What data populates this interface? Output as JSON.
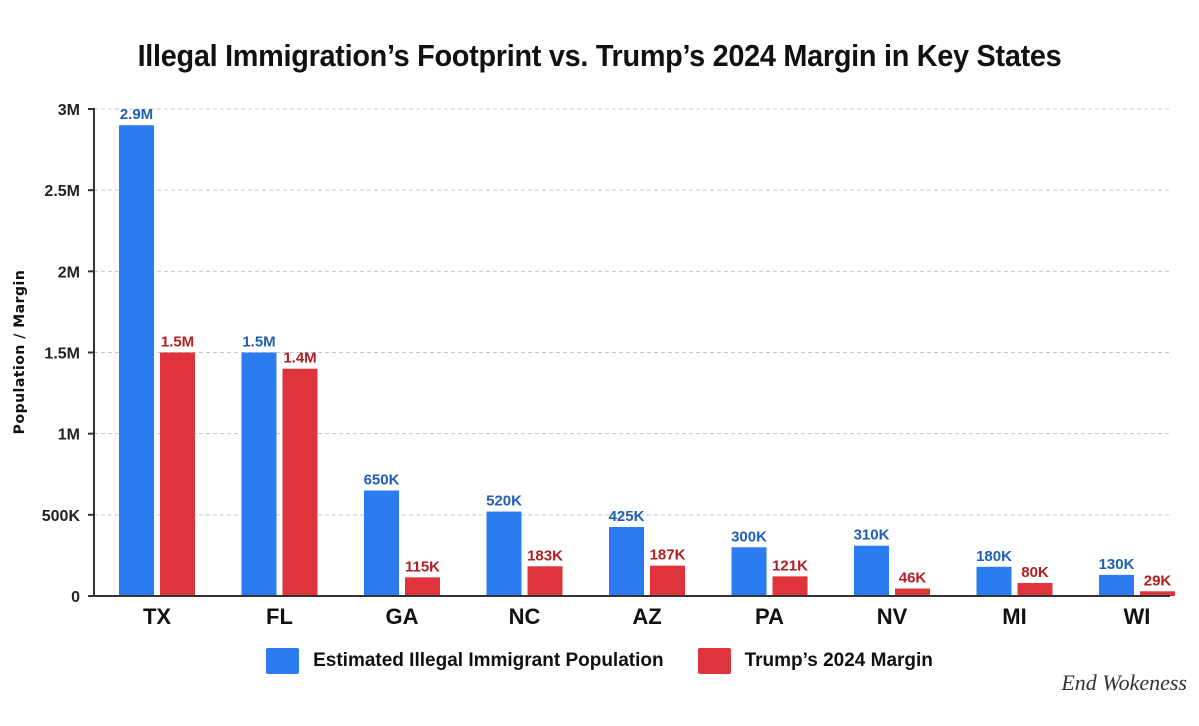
{
  "chart_data": {
    "type": "bar",
    "title": "Illegal Immigration’s Footprint vs. Trump’s 2024 Margin in Key States",
    "xlabel": "",
    "ylabel": "Population / Margin",
    "ylim": [
      0,
      3000000
    ],
    "yticks": [
      {
        "value": 0,
        "label": "0"
      },
      {
        "value": 500000,
        "label": "500K"
      },
      {
        "value": 1000000,
        "label": "1M"
      },
      {
        "value": 1500000,
        "label": "1.5M"
      },
      {
        "value": 2000000,
        "label": "2M"
      },
      {
        "value": 2500000,
        "label": "2.5M"
      },
      {
        "value": 3000000,
        "label": "3M"
      }
    ],
    "grid": true,
    "legend_position": "bottom",
    "categories": [
      "TX",
      "FL",
      "GA",
      "NC",
      "AZ",
      "PA",
      "NV",
      "MI",
      "WI"
    ],
    "series": [
      {
        "name": "Estimated Illegal Immigrant Population",
        "color": "#2b7cf0",
        "label_color": "#1f5fb4",
        "values": [
          2900000,
          1500000,
          650000,
          520000,
          425000,
          300000,
          310000,
          180000,
          130000
        ],
        "labels": [
          "2.9M",
          "1.5M",
          "650K",
          "520K",
          "425K",
          "300K",
          "310K",
          "180K",
          "130K"
        ]
      },
      {
        "name": "Trump’s 2024 Margin",
        "color": "#e0343c",
        "label_color": "#b01e22",
        "values": [
          1500000,
          1400000,
          115000,
          183000,
          187000,
          121000,
          46000,
          80000,
          29000
        ],
        "labels": [
          "1.5M",
          "1.4M",
          "115K",
          "183K",
          "187K",
          "121K",
          "46K",
          "80K",
          "29K"
        ]
      }
    ]
  },
  "watermark": "End Wokeness"
}
